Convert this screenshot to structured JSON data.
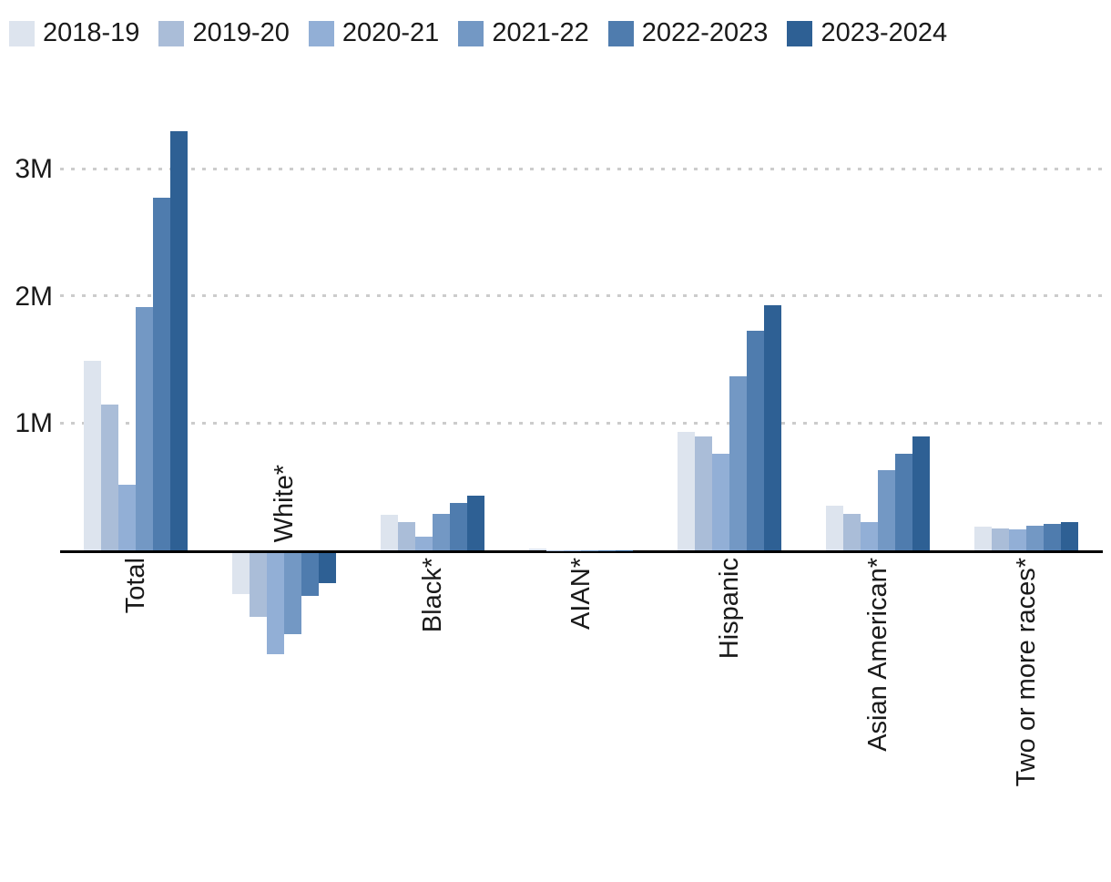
{
  "legend": {
    "items": [
      {
        "label": "2018-19",
        "color": "#dde4ee"
      },
      {
        "label": "2019-20",
        "color": "#aabdd8"
      },
      {
        "label": "2020-21",
        "color": "#92afd6"
      },
      {
        "label": "2021-22",
        "color": "#7398c4"
      },
      {
        "label": "2022-2023",
        "color": "#4f7cae"
      },
      {
        "label": "2023-2024",
        "color": "#2e6094"
      }
    ]
  },
  "chart_data": {
    "type": "bar",
    "title": "",
    "xlabel": "",
    "ylabel": "",
    "unit": "M",
    "categories": [
      "Total",
      "White*",
      "Black*",
      "AIAN*",
      "Hispanic",
      "Asian American*",
      "Two or more races*"
    ],
    "series": [
      {
        "name": "2018-19",
        "color": "#dde4ee",
        "values": [
          1.49,
          -0.32,
          0.28,
          0.015,
          0.93,
          0.35,
          0.185
        ]
      },
      {
        "name": "2019-20",
        "color": "#aabdd8",
        "values": [
          1.15,
          -0.5,
          0.22,
          0.003,
          0.9,
          0.29,
          0.175
        ]
      },
      {
        "name": "2020-21",
        "color": "#92afd6",
        "values": [
          0.52,
          -0.8,
          0.11,
          0.002,
          0.76,
          0.22,
          0.165
        ]
      },
      {
        "name": "2021-22",
        "color": "#7398c4",
        "values": [
          1.92,
          -0.64,
          0.29,
          0.002,
          1.37,
          0.63,
          0.195
        ]
      },
      {
        "name": "2022-2023",
        "color": "#4f7cae",
        "values": [
          2.78,
          -0.34,
          0.37,
          0.003,
          1.73,
          0.76,
          0.21
        ]
      },
      {
        "name": "2023-2024",
        "color": "#2e6094",
        "values": [
          3.3,
          -0.24,
          0.43,
          0.003,
          1.93,
          0.9,
          0.22
        ]
      }
    ],
    "yticks": [
      "1M",
      "2M",
      "3M"
    ],
    "ytick_values": [
      1,
      2,
      3
    ],
    "ylim": [
      -0.9,
      3.4
    ],
    "grid": "dotted-horizontal",
    "legend_position": "top-left",
    "negative_categories": [
      "White*"
    ]
  },
  "colors": {
    "axis": "#000000",
    "gridline": "#cccccc",
    "text": "#1a1a1a",
    "background": "#ffffff"
  }
}
